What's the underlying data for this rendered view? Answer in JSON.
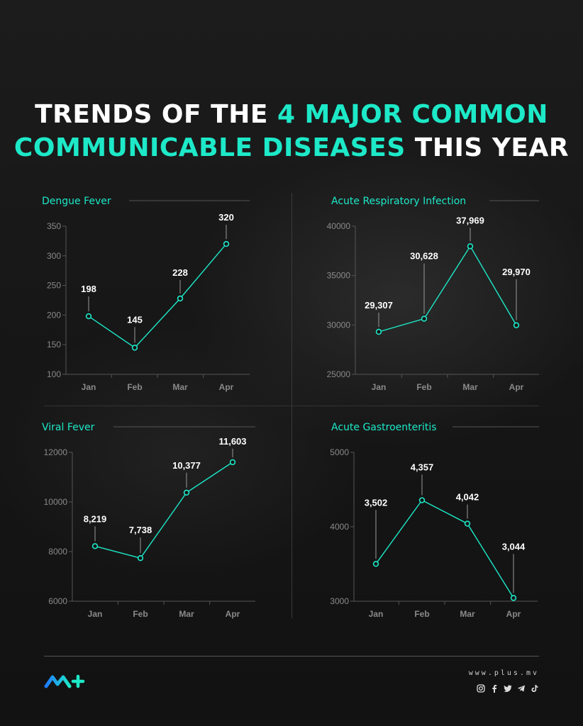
{
  "header": {
    "title_part1": "TRENDS OF THE ",
    "title_highlight1": "4 MAJOR COMMON",
    "title_highlight2": "COMMUNICABLE DISEASES",
    "title_part2": " THIS YEAR"
  },
  "colors": {
    "accent": "#1de9c8",
    "background": "#161616",
    "text": "#ffffff",
    "muted": "#8a8a8a"
  },
  "chart_data": [
    {
      "type": "line",
      "title": "Dengue Fever",
      "categories": [
        "Jan",
        "Feb",
        "Mar",
        "Apr"
      ],
      "values": [
        198,
        145,
        228,
        320
      ],
      "value_labels": [
        "198",
        "145",
        "228",
        "320"
      ],
      "yticks": [
        100,
        150,
        200,
        250,
        300,
        350
      ],
      "ytick_labels": [
        "100",
        "150",
        "200",
        "250",
        "300",
        "350"
      ],
      "ylim": [
        100,
        350
      ]
    },
    {
      "type": "line",
      "title": "Acute Respiratory Infection",
      "categories": [
        "Jan",
        "Feb",
        "Mar",
        "Apr"
      ],
      "values": [
        29307,
        30628,
        37969,
        29970
      ],
      "value_labels": [
        "29,307",
        "30,628",
        "37,969",
        "29,970"
      ],
      "yticks": [
        25000,
        30000,
        35000,
        40000
      ],
      "ytick_labels": [
        "25000",
        "30000",
        "35000",
        "40000"
      ],
      "ylim": [
        25000,
        40000
      ]
    },
    {
      "type": "line",
      "title": "Viral Fever",
      "categories": [
        "Jan",
        "Feb",
        "Mar",
        "Apr"
      ],
      "values": [
        8219,
        7738,
        10377,
        11603
      ],
      "value_labels": [
        "8,219",
        "7,738",
        "10,377",
        "11,603"
      ],
      "yticks": [
        6000,
        8000,
        10000,
        12000
      ],
      "ytick_labels": [
        "6000",
        "8000",
        "10000",
        "12000"
      ],
      "ylim": [
        6000,
        12000
      ]
    },
    {
      "type": "line",
      "title": "Acute Gastroenteritis",
      "categories": [
        "Jan",
        "Feb",
        "Mar",
        "Apr"
      ],
      "values": [
        3502,
        4357,
        4042,
        3044
      ],
      "value_labels": [
        "3,502",
        "4,357",
        "4,042",
        "3,044"
      ],
      "yticks": [
        3000,
        4000,
        5000
      ],
      "ytick_labels": [
        "3000",
        "4000",
        "5000"
      ],
      "ylim": [
        3000,
        5000
      ]
    }
  ],
  "footer": {
    "website": "www.plus.mv",
    "logo_icon": "plus-mv-logo",
    "social_icons": [
      "instagram-icon",
      "facebook-icon",
      "twitter-icon",
      "telegram-icon",
      "tiktok-icon"
    ]
  }
}
